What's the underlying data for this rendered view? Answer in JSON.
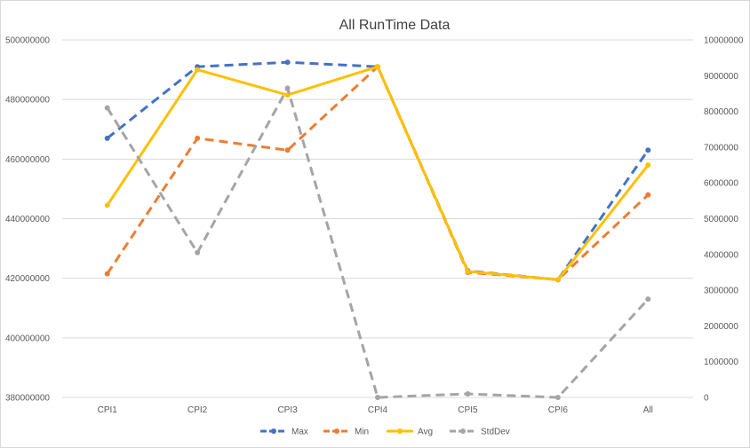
{
  "chart_data": {
    "type": "line",
    "title": "All RunTime Data",
    "categories": [
      "CPI1",
      "CPI2",
      "CPI3",
      "CPI4",
      "CPI5",
      "CPI6",
      "All"
    ],
    "y_left": {
      "min": 380000000,
      "max": 500000000,
      "ticks": [
        "500000000",
        "480000000",
        "460000000",
        "440000000",
        "420000000",
        "400000000",
        "380000000"
      ]
    },
    "y_right": {
      "min": 0,
      "max": 10000000,
      "ticks": [
        "10000000",
        "9000000",
        "8000000",
        "7000000",
        "6000000",
        "5000000",
        "4000000",
        "3000000",
        "2000000",
        "1000000",
        "0"
      ]
    },
    "grid": true,
    "legend_position": "bottom",
    "series": [
      {
        "name": "Max",
        "axis": "left",
        "style": "dashed",
        "color": "#4472C4",
        "values": [
          467000000,
          491000000,
          492500000,
          491000000,
          422500000,
          419500000,
          463000000
        ]
      },
      {
        "name": "Min",
        "axis": "left",
        "style": "dashed",
        "color": "#ED7D31",
        "values": [
          421500000,
          467000000,
          463000000,
          491000000,
          422000000,
          419500000,
          448000000
        ]
      },
      {
        "name": "Avg",
        "axis": "left",
        "style": "solid",
        "color": "#FFC000",
        "values": [
          444500000,
          490000000,
          481500000,
          491000000,
          422300000,
          419500000,
          458000000
        ]
      },
      {
        "name": "StdDev",
        "axis": "right",
        "style": "dashed",
        "color": "#A5A5A5",
        "values": [
          8100000,
          4050000,
          8650000,
          0,
          100000,
          0,
          2750000
        ]
      }
    ]
  }
}
